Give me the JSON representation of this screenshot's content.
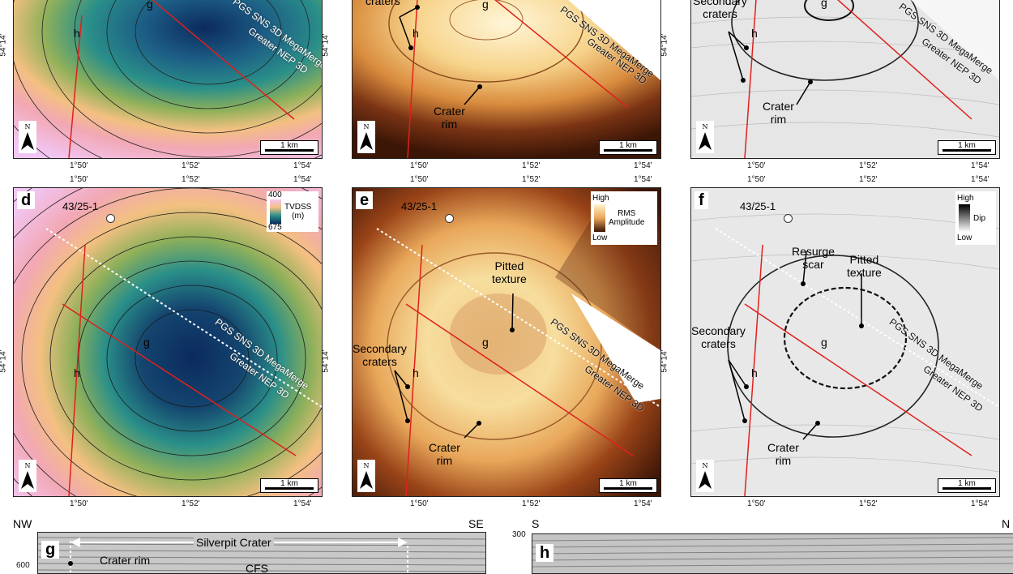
{
  "panels": {
    "a": {
      "survey1": "PGS SNS 3D MegaMerge",
      "survey2": "Greater NEP 3D",
      "line_g": "g",
      "line_h": "h",
      "scale": "1 km",
      "north": "N"
    },
    "b": {
      "label_craters": "craters",
      "survey1": "PGS SNS 3D MegaMerge",
      "survey2": "Greater NEP 3D",
      "line_g": "g",
      "line_h": "h",
      "crater_rim": "Crater\nrim",
      "scale": "1 km",
      "north": "N"
    },
    "c": {
      "secondary": "Secondary\ncraters",
      "survey1": "PGS SNS 3D MegaMerge",
      "survey2": "Greater NEP 3D",
      "line_g": "g",
      "line_h": "h",
      "crater_rim": "Crater\nrim",
      "scale": "1 km",
      "north": "N"
    },
    "d": {
      "letter": "d",
      "well": "43/25-1",
      "legend_top": "400",
      "legend_bottom": "675",
      "legend_title": "TVDSS\n(m)",
      "survey1": "PGS SNS 3D MegaMerge",
      "survey2": "Greater NEP 3D",
      "line_g": "g",
      "line_h": "h",
      "scale": "1 km",
      "north": "N"
    },
    "e": {
      "letter": "e",
      "well": "43/25-1",
      "legend_top": "High",
      "legend_bottom": "Low",
      "legend_title": "RMS\nAmplitude",
      "pitted": "Pitted\ntexture",
      "secondary": "Secondary\ncraters",
      "survey1": "PGS SNS 3D MegaMerge",
      "survey2": "Greater NEP 3D",
      "line_g": "g",
      "line_h": "h",
      "crater_rim": "Crater\nrim",
      "scale": "1 km",
      "north": "N"
    },
    "f": {
      "letter": "f",
      "well": "43/25-1",
      "legend_top": "High",
      "legend_bottom": "Low",
      "legend_title": "Dip",
      "resurge": "Resurge\nscar",
      "pitted": "Pitted\ntexture",
      "secondary": "Secondary\ncraters",
      "survey1": "PGS SNS 3D MegaMerge",
      "survey2": "Greater NEP 3D",
      "line_g": "g",
      "line_h": "h",
      "crater_rim": "Crater\nrim",
      "scale": "1 km",
      "north": "N"
    },
    "g": {
      "letter": "g",
      "nw": "NW",
      "se": "SE",
      "title": "Silverpit Crater",
      "rim": "Crater rim",
      "depth": "600",
      "cfs": "CFS"
    },
    "h": {
      "letter": "h",
      "s": "S",
      "n": "N",
      "depth": "300"
    }
  },
  "ticks": {
    "lon": [
      "1°50'",
      "1°52'",
      "1°54'"
    ],
    "lat": "54°14'"
  },
  "colors": {
    "line": "#e0201c",
    "contour": "#1a1a1a"
  }
}
